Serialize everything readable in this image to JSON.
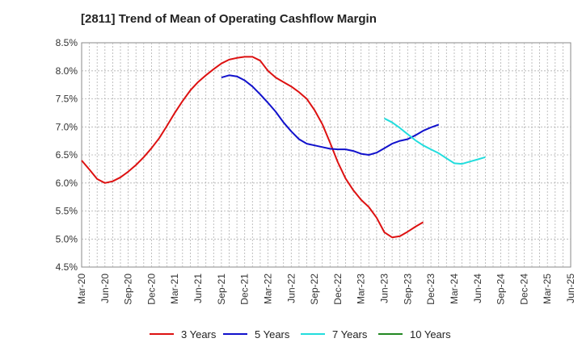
{
  "chart_data": {
    "type": "line",
    "title": "[2811]  Trend of Mean of Operating Cashflow Margin",
    "xlabel": "",
    "ylabel": "",
    "x_ticks": [
      "Mar-20",
      "Jun-20",
      "Sep-20",
      "Dec-20",
      "Mar-21",
      "Jun-21",
      "Sep-21",
      "Dec-21",
      "Mar-22",
      "Jun-22",
      "Sep-22",
      "Dec-22",
      "Mar-23",
      "Jun-23",
      "Sep-23",
      "Dec-23",
      "Mar-24",
      "Jun-24",
      "Sep-24",
      "Dec-24",
      "Mar-25",
      "Jun-25"
    ],
    "y_ticks": [
      "4.5%",
      "5.0%",
      "5.5%",
      "6.0%",
      "6.5%",
      "7.0%",
      "7.5%",
      "8.0%",
      "8.5%"
    ],
    "ylim": [
      4.5,
      8.5
    ],
    "grid": true,
    "legend_position": "bottom",
    "series": [
      {
        "name": "3 Years",
        "color": "#dd1111",
        "start_index": 0,
        "values": [
          6.4,
          6.24,
          6.07,
          6.0,
          6.03,
          6.1,
          6.2,
          6.32,
          6.46,
          6.62,
          6.8,
          7.02,
          7.25,
          7.46,
          7.65,
          7.8,
          7.92,
          8.03,
          8.13,
          8.2,
          8.23,
          8.25,
          8.25,
          8.18,
          8.0,
          7.88,
          7.8,
          7.72,
          7.62,
          7.5,
          7.3,
          7.05,
          6.72,
          6.37,
          6.08,
          5.87,
          5.7,
          5.57,
          5.38,
          5.12,
          5.03,
          5.05,
          5.13,
          5.22,
          5.3
        ]
      },
      {
        "name": "5 Years",
        "color": "#1111cc",
        "start_index": 18,
        "values": [
          7.88,
          7.92,
          7.9,
          7.83,
          7.72,
          7.58,
          7.43,
          7.27,
          7.08,
          6.92,
          6.78,
          6.7,
          6.67,
          6.64,
          6.61,
          6.6,
          6.6,
          6.57,
          6.52,
          6.5,
          6.54,
          6.62,
          6.7,
          6.75,
          6.78,
          6.85,
          6.93,
          6.99,
          7.04
        ]
      },
      {
        "name": "7 Years",
        "color": "#22dddd",
        "start_index": 39,
        "values": [
          7.15,
          7.08,
          6.98,
          6.87,
          6.76,
          6.67,
          6.6,
          6.53,
          6.44,
          6.35,
          6.34,
          6.38,
          6.42,
          6.46
        ]
      },
      {
        "name": "10 Years",
        "color": "#228822",
        "start_index": 0,
        "values": []
      }
    ]
  }
}
